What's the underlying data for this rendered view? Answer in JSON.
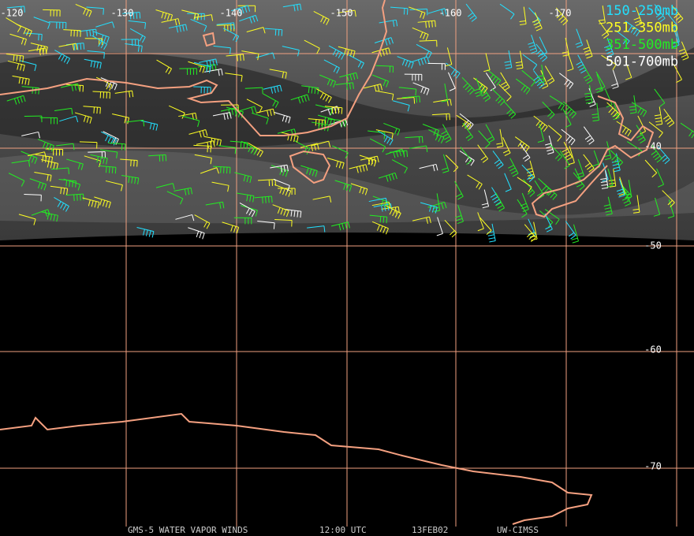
{
  "map": {
    "longitude_labels": [
      "-120",
      "-130",
      "-140",
      "-150",
      "-160",
      "-170"
    ],
    "latitude_labels": [
      "-40",
      "-50",
      "-60",
      "-70"
    ],
    "legend": [
      {
        "label": "150-250mb",
        "color": "#22e0ff"
      },
      {
        "label": "251-350mb",
        "color": "#ffff22"
      },
      {
        "label": "351-500mb",
        "color": "#22ee22"
      },
      {
        "label": "501-700mb",
        "color": "#ffffff"
      }
    ],
    "footer": [
      "GMS-5 WATER VAPOR WINDS",
      "12:00 UTC",
      "13FEB02",
      "UW-CIMSS"
    ]
  }
}
